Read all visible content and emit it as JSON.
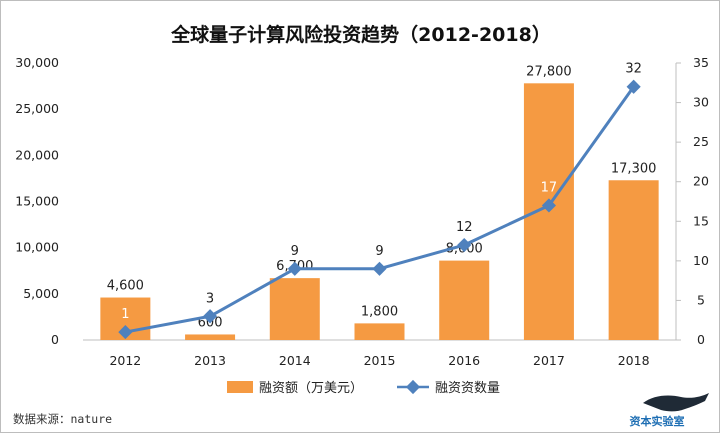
{
  "chart_data": {
    "type": "bar+line",
    "title": "全球量子计算风险投资趋势（2012-2018）",
    "categories": [
      "2012",
      "2013",
      "2014",
      "2015",
      "2016",
      "2017",
      "2018"
    ],
    "series": [
      {
        "name": "融资额（万美元）",
        "type": "bar",
        "axis": "left",
        "values": [
          4600,
          600,
          6700,
          1800,
          8600,
          27800,
          17300
        ],
        "labels": [
          "4,600",
          "600",
          "6,700",
          "1,800",
          "8,600",
          "27,800",
          "17,300"
        ],
        "color": "#f59a42"
      },
      {
        "name": "融资资数量",
        "type": "line",
        "axis": "right",
        "values": [
          1,
          3,
          9,
          9,
          12,
          17,
          32
        ],
        "labels": [
          "1",
          "3",
          "9",
          "9",
          "12",
          "17",
          "32"
        ],
        "color": "#4f81bd"
      }
    ],
    "left_axis": {
      "ylim": [
        0,
        30000
      ],
      "ticks": [
        "0",
        "5,000",
        "10,000",
        "15,000",
        "20,000",
        "25,000",
        "30,000"
      ]
    },
    "right_axis": {
      "ylim": [
        0,
        35
      ],
      "ticks": [
        "0",
        "5",
        "10",
        "15",
        "20",
        "25",
        "30",
        "35"
      ]
    },
    "legend_placement": "bottom",
    "grid": false
  },
  "source": "数据来源：nature",
  "logo": {
    "text": "资本实验室"
  },
  "colors": {
    "bar": "#f59a42",
    "line": "#4f81bd",
    "axis": "#bfbfbf"
  }
}
